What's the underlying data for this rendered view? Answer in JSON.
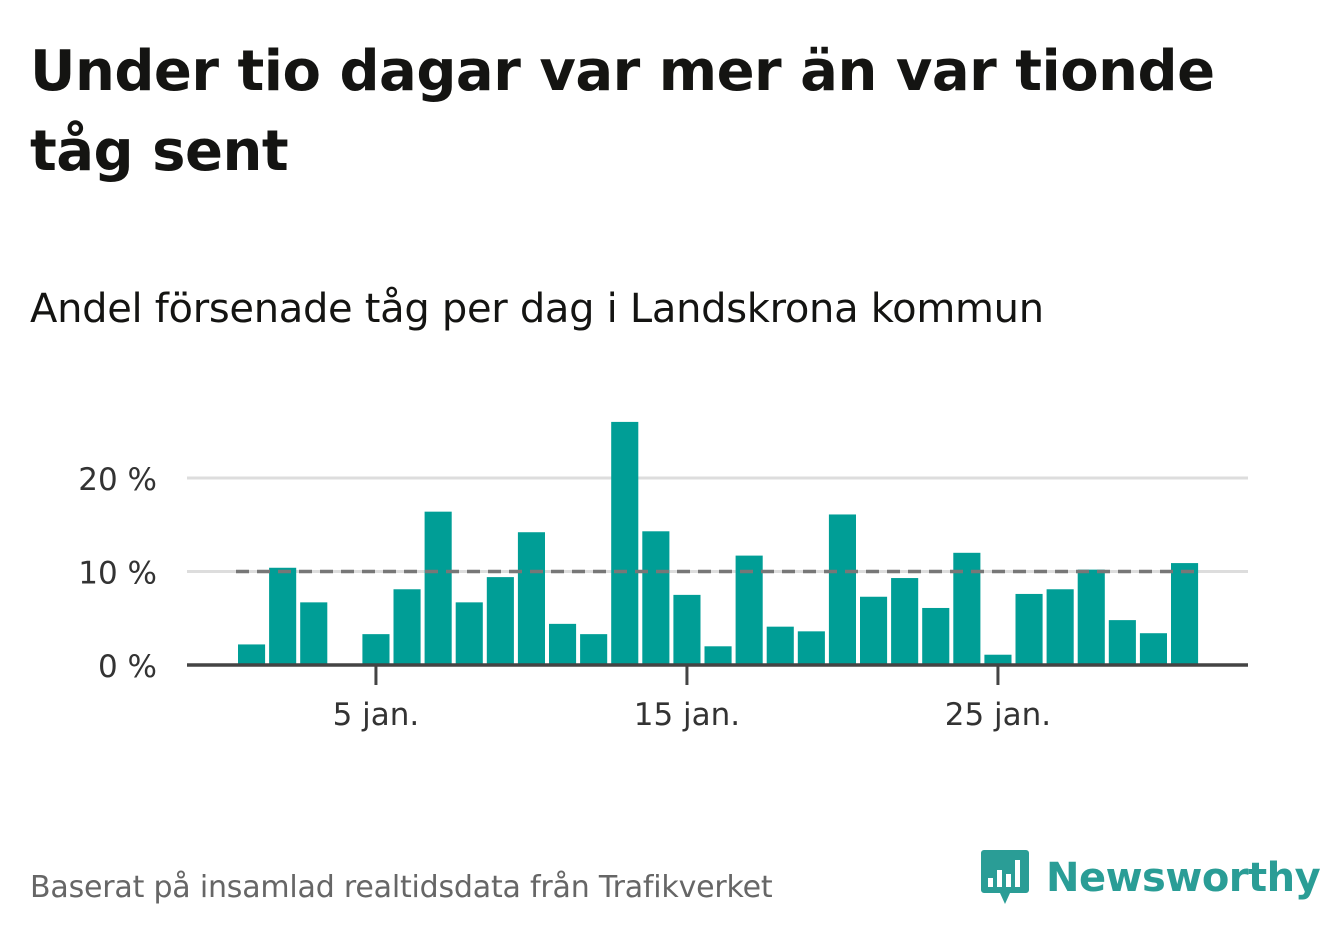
{
  "title": "Under tio dagar var mer än var tionde tåg sent",
  "subtitle": "Andel försenade tåg per dag i Landskrona kommun",
  "footer": {
    "source": "Baserat på insamlad realtidsdata från Trafikverket",
    "brand": "Newsworthy"
  },
  "colors": {
    "bar": "#009e96",
    "reference_line": "#777777",
    "grid": "#dddddd",
    "axis": "#444444",
    "brand": "#2a9d96"
  },
  "chart_data": {
    "type": "bar",
    "x_unit": "day of January",
    "x": [
      1,
      2,
      3,
      4,
      5,
      6,
      7,
      8,
      9,
      10,
      11,
      12,
      13,
      14,
      15,
      16,
      17,
      18,
      19,
      20,
      21,
      22,
      23,
      24,
      25,
      26,
      27,
      28,
      29,
      30,
      31
    ],
    "values": [
      2.2,
      10.4,
      6.7,
      0,
      3.3,
      8.1,
      16.4,
      6.7,
      9.4,
      14.2,
      4.4,
      3.3,
      26.0,
      14.3,
      7.5,
      2.0,
      11.7,
      4.1,
      3.6,
      16.1,
      7.3,
      9.3,
      6.1,
      12.0,
      1.1,
      7.6,
      8.1,
      10.2,
      4.8,
      3.4,
      10.9
    ],
    "reference_line": 10,
    "reference_style": "dashed",
    "ylim": [
      0,
      27
    ],
    "y_ticks": [
      0,
      10,
      20
    ],
    "y_tick_labels": [
      "0 %",
      "10 %",
      "20 %"
    ],
    "x_ticks": [
      5,
      15,
      25
    ],
    "x_tick_labels": [
      "5 jan.",
      "15 jan.",
      "25 jan."
    ],
    "grid": "horizontal",
    "xlabel": "",
    "ylabel": ""
  }
}
